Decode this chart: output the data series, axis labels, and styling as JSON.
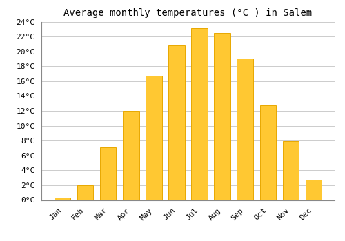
{
  "title": "Average monthly temperatures (°C ) in Salem",
  "months": [
    "Jan",
    "Feb",
    "Mar",
    "Apr",
    "May",
    "Jun",
    "Jul",
    "Aug",
    "Sep",
    "Oct",
    "Nov",
    "Dec"
  ],
  "temperatures": [
    0.3,
    2.0,
    7.1,
    12.0,
    16.7,
    20.8,
    23.1,
    22.5,
    19.0,
    12.7,
    7.9,
    2.7
  ],
  "bar_color": "#FFC832",
  "bar_edge_color": "#E8A800",
  "background_color": "#ffffff",
  "grid_color": "#cccccc",
  "ylim": [
    0,
    24
  ],
  "yticks": [
    0,
    2,
    4,
    6,
    8,
    10,
    12,
    14,
    16,
    18,
    20,
    22,
    24
  ],
  "title_fontsize": 10,
  "tick_fontsize": 8,
  "font_family": "monospace"
}
